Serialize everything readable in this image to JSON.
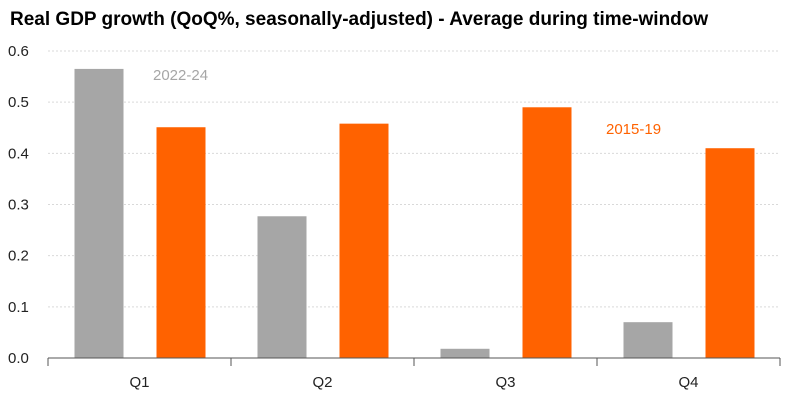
{
  "chart_data": {
    "type": "bar",
    "title": "Real GDP growth (QoQ%, seasonally-adjusted) - Average during time-window",
    "xlabel": "",
    "ylabel": "",
    "categories": [
      "Q1",
      "Q2",
      "Q3",
      "Q4"
    ],
    "series": [
      {
        "name": "2022-24",
        "color": "#a6a6a6",
        "values": [
          0.565,
          0.277,
          0.018,
          0.07
        ]
      },
      {
        "name": "2015-19",
        "color": "#ff6200",
        "values": [
          0.451,
          0.458,
          0.49,
          0.41
        ]
      }
    ],
    "ylim": [
      0,
      0.6
    ],
    "yticks": [
      "0.0",
      "0.1",
      "0.2",
      "0.3",
      "0.4",
      "0.5",
      "0.6"
    ],
    "grid": true,
    "legend": "inline labels near bars"
  }
}
